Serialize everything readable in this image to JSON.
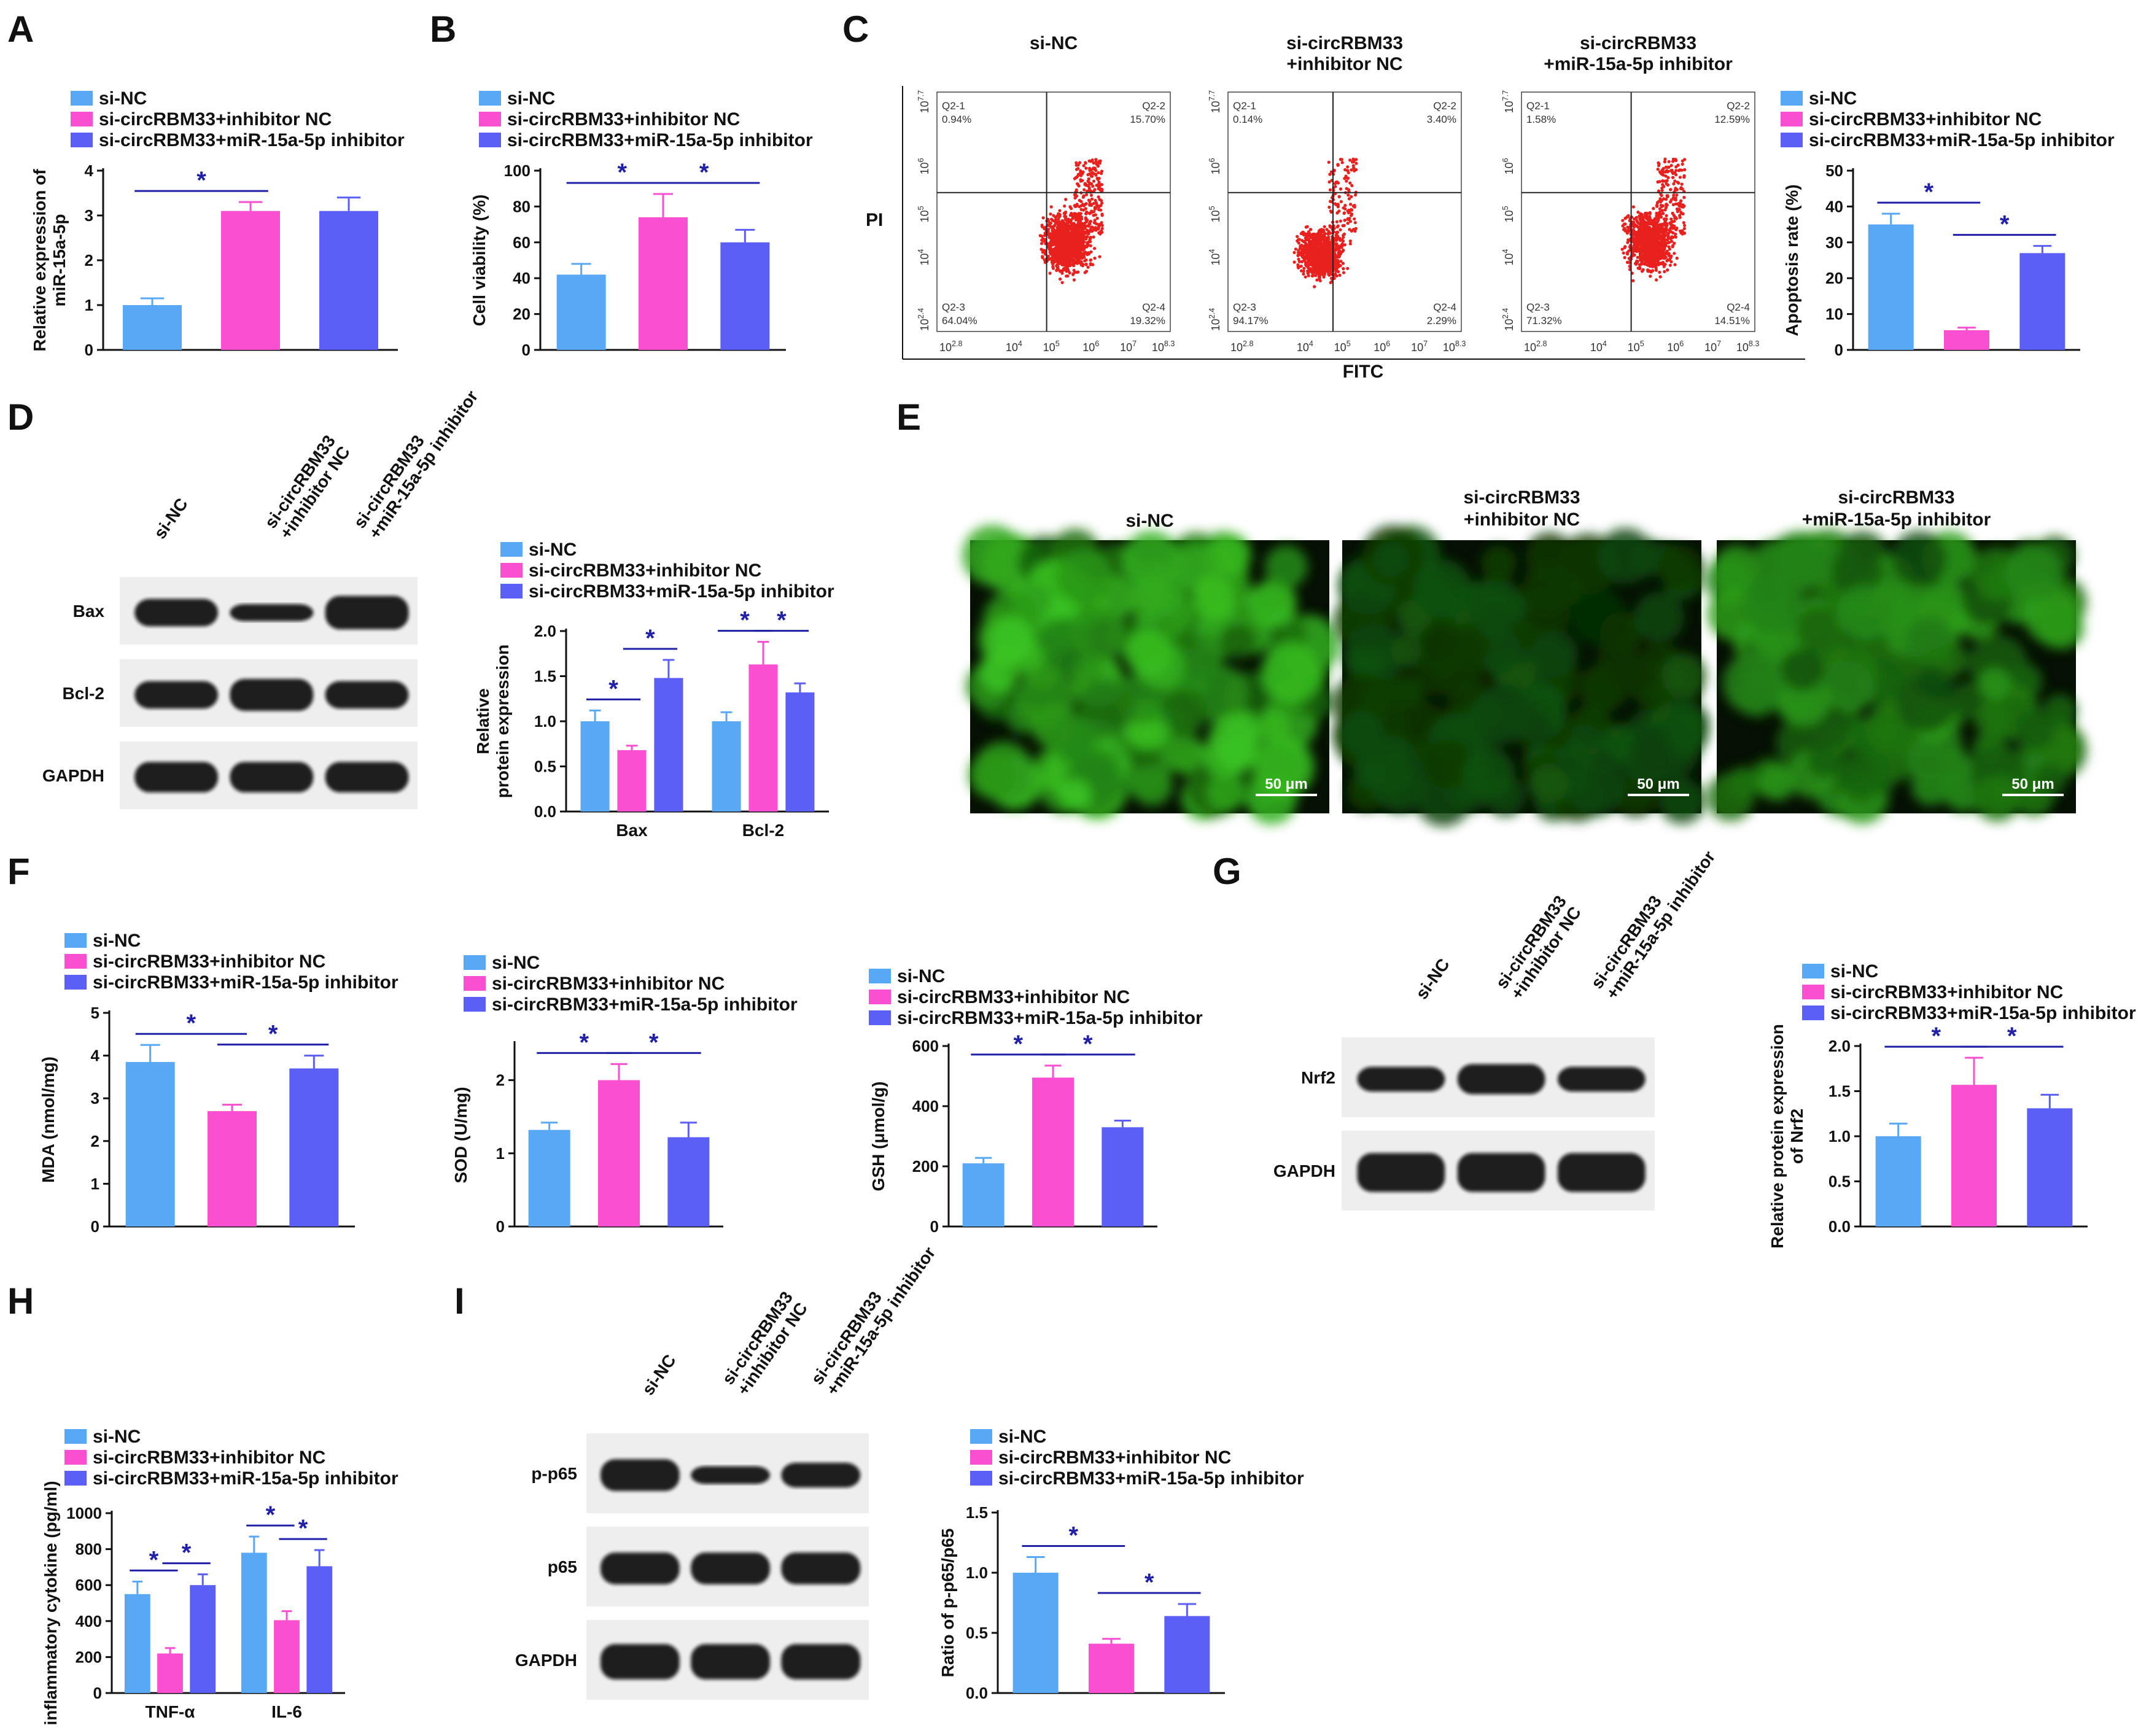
{
  "panel_letters": [
    "A",
    "B",
    "C",
    "D",
    "E",
    "F",
    "G",
    "H",
    "I"
  ],
  "legend": {
    "si_nc": "si-NC",
    "inhibitor_nc": "si-circRBM33+inhibitor NC",
    "mir_inhibitor": "si-circRBM33+miR-15a-5p inhibitor"
  },
  "colors": {
    "si_nc": "#59a8f5",
    "inhibitor_nc": "#f94fd0",
    "mir_inhibitor": "#5b5ff5",
    "significance": "#1f1fa8"
  },
  "significance_symbol": "*",
  "flow": {
    "groups": [
      "si-NC",
      "si-circRBM33\n+inhibitor NC",
      "si-circRBM33\n+miR-15a-5p inhibitor"
    ],
    "x_axis_title": "FITC",
    "y_axis_title": "PI",
    "x_ticks": [
      "10^2.8",
      "10^4",
      "10^5",
      "10^6",
      "10^7",
      "10^8.3"
    ],
    "y_ticks": [
      "10^2.4",
      "10^4",
      "10^5",
      "10^6",
      "10^7.7"
    ],
    "quadrant_names": [
      "Q2-1",
      "Q2-2",
      "Q2-3",
      "Q2-4"
    ],
    "plots": [
      {
        "q1": "0.94%",
        "q2": "15.70%",
        "q3": "64.04%",
        "q4": "19.32%"
      },
      {
        "q1": "0.14%",
        "q2": "3.40%",
        "q3": "94.17%",
        "q4": "2.29%"
      },
      {
        "q1": "1.58%",
        "q2": "12.59%",
        "q3": "71.32%",
        "q4": "14.51%"
      }
    ]
  },
  "blots": {
    "D": {
      "lanes": [
        "si-NC",
        "si-circRBM33\n+inhibitor NC",
        "si-circRBM33\n+miR-15a-5p inhibitor"
      ],
      "rows": [
        "Bax",
        "Bcl-2",
        "GAPDH"
      ]
    },
    "G": {
      "lanes": [
        "si-NC",
        "si-circRBM33\n+inhibitor NC",
        "si-circRBM33\n+miR-15a-5p inhibitor"
      ],
      "rows": [
        "Nrf2",
        "GAPDH"
      ]
    },
    "I": {
      "lanes": [
        "si-NC",
        "si-circRBM33\n+inhibitor NC",
        "si-circRBM33\n+miR-15a-5p inhibitor"
      ],
      "rows": [
        "p-p65",
        "p65",
        "GAPDH"
      ]
    }
  },
  "microscopy": {
    "titles": [
      "si-NC",
      "si-circRBM33\n+inhibitor NC",
      "si-circRBM33\n+miR-15a-5p inhibitor"
    ],
    "scale_bar": "50 μm",
    "relative_brightness": [
      0.85,
      0.3,
      0.65
    ]
  },
  "chart_data": [
    {
      "panel": "A",
      "type": "bar",
      "categories": [
        "si-NC",
        "si-circRBM33+inhibitor NC",
        "si-circRBM33+miR-15a-5p inhibitor"
      ],
      "values": [
        1.0,
        3.1,
        3.1
      ],
      "errors": [
        0.15,
        0.2,
        0.3
      ],
      "ylabel": "Relative expression of\nmiR-15a-5p",
      "ylim": [
        0,
        4
      ],
      "yticks": [
        0,
        1,
        2,
        3,
        4
      ],
      "significance": [
        [
          0,
          1
        ]
      ]
    },
    {
      "panel": "B",
      "type": "bar",
      "categories": [
        "si-NC",
        "si-circRBM33+inhibitor NC",
        "si-circRBM33+miR-15a-5p inhibitor"
      ],
      "values": [
        42,
        74,
        60
      ],
      "errors": [
        6,
        13,
        7
      ],
      "ylabel": "Cell viability (%)",
      "ylim": [
        0,
        100
      ],
      "yticks": [
        0,
        20,
        40,
        60,
        80,
        100
      ],
      "significance": [
        [
          0,
          1
        ],
        [
          1,
          2
        ]
      ]
    },
    {
      "panel": "C",
      "type": "bar",
      "categories": [
        "si-NC",
        "si-circRBM33+inhibitor NC",
        "si-circRBM33+miR-15a-5p inhibitor"
      ],
      "values": [
        35,
        5.5,
        27
      ],
      "errors": [
        3,
        0.7,
        2
      ],
      "ylabel": "Apoptosis rate (%)",
      "ylim": [
        0,
        50
      ],
      "yticks": [
        0,
        10,
        20,
        30,
        40,
        50
      ],
      "significance": [
        [
          0,
          1
        ],
        [
          1,
          2
        ]
      ]
    },
    {
      "panel": "D",
      "type": "bar",
      "categories": [
        "Bax",
        "Bcl-2"
      ],
      "series": [
        {
          "name": "si-NC",
          "values": [
            1.0,
            1.0
          ],
          "errors": [
            0.12,
            0.1
          ]
        },
        {
          "name": "si-circRBM33+inhibitor NC",
          "values": [
            0.68,
            1.63
          ],
          "errors": [
            0.05,
            0.25
          ]
        },
        {
          "name": "si-circRBM33+miR-15a-5p inhibitor",
          "values": [
            1.48,
            1.32
          ],
          "errors": [
            0.2,
            0.1
          ]
        }
      ],
      "ylabel": "Relative\nprotein expression",
      "ylim": [
        0,
        2
      ],
      "yticks": [
        "0.0",
        "0.5",
        "1.0",
        "1.5",
        "2.0"
      ],
      "significance": [
        [
          0,
          0,
          1
        ],
        [
          0,
          1,
          2
        ],
        [
          1,
          0,
          1
        ],
        [
          1,
          1,
          2
        ]
      ]
    },
    {
      "panel": "F1",
      "type": "bar",
      "categories": [
        "si-NC",
        "si-circRBM33+inhibitor NC",
        "si-circRBM33+miR-15a-5p inhibitor"
      ],
      "values": [
        3.85,
        2.7,
        3.7
      ],
      "errors": [
        0.4,
        0.15,
        0.3
      ],
      "ylabel": "MDA (nmol/mg)",
      "ylim": [
        0,
        5
      ],
      "yticks": [
        0,
        1,
        2,
        3,
        4,
        5
      ],
      "significance": [
        [
          0,
          1
        ],
        [
          1,
          2
        ]
      ]
    },
    {
      "panel": "F2",
      "type": "bar",
      "categories": [
        "si-NC",
        "si-circRBM33+inhibitor NC",
        "si-circRBM33+miR-15a-5p inhibitor"
      ],
      "values": [
        1.32,
        2.0,
        1.22
      ],
      "errors": [
        0.1,
        0.22,
        0.2
      ],
      "ylabel": "SOD (U/mg)",
      "ylim": [
        0,
        2.5
      ],
      "yticks": [
        0,
        1,
        2
      ],
      "significance": [
        [
          0,
          1
        ],
        [
          1,
          2
        ]
      ]
    },
    {
      "panel": "F3",
      "type": "bar",
      "categories": [
        "si-NC",
        "si-circRBM33+inhibitor NC",
        "si-circRBM33+miR-15a-5p inhibitor"
      ],
      "values": [
        210,
        495,
        330
      ],
      "errors": [
        18,
        40,
        22
      ],
      "ylabel": "GSH (μmol/g)",
      "ylim": [
        0,
        600
      ],
      "yticks": [
        0,
        200,
        400,
        600
      ],
      "significance": [
        [
          0,
          1
        ],
        [
          1,
          2
        ]
      ]
    },
    {
      "panel": "G",
      "type": "bar",
      "categories": [
        "si-NC",
        "si-circRBM33+inhibitor NC",
        "si-circRBM33+miR-15a-5p inhibitor"
      ],
      "values": [
        1.0,
        1.57,
        1.31
      ],
      "errors": [
        0.14,
        0.3,
        0.15
      ],
      "ylabel": "Relative protein expression\nof Nrf2",
      "ylim": [
        0,
        2
      ],
      "yticks": [
        "0.0",
        "0.5",
        "1.0",
        "1.5",
        "2.0"
      ],
      "significance": [
        [
          0,
          1
        ],
        [
          1,
          2
        ]
      ]
    },
    {
      "panel": "H",
      "type": "bar",
      "categories": [
        "TNF-α",
        "IL-6"
      ],
      "series": [
        {
          "name": "si-NC",
          "values": [
            550,
            780
          ],
          "errors": [
            70,
            90
          ]
        },
        {
          "name": "si-circRBM33+inhibitor NC",
          "values": [
            220,
            405
          ],
          "errors": [
            30,
            50
          ]
        },
        {
          "name": "si-circRBM33+miR-15a-5p inhibitor",
          "values": [
            600,
            705
          ],
          "errors": [
            60,
            90
          ]
        }
      ],
      "ylabel": "inflammatory cytokine (pg/ml)",
      "ylim": [
        0,
        1000
      ],
      "yticks": [
        0,
        200,
        400,
        600,
        800,
        1000
      ],
      "significance": [
        [
          0,
          0,
          1
        ],
        [
          0,
          1,
          2
        ],
        [
          1,
          0,
          1
        ],
        [
          1,
          1,
          2
        ]
      ]
    },
    {
      "panel": "I",
      "type": "bar",
      "categories": [
        "si-NC",
        "si-circRBM33+inhibitor NC",
        "si-circRBM33+miR-15a-5p inhibitor"
      ],
      "values": [
        1.0,
        0.41,
        0.64
      ],
      "errors": [
        0.13,
        0.04,
        0.1
      ],
      "ylabel": "Ratio of p-p65/p65",
      "ylim": [
        0,
        1.5
      ],
      "yticks": [
        "0.0",
        "0.5",
        "1.0",
        "1.5"
      ],
      "significance": [
        [
          0,
          1
        ],
        [
          1,
          2
        ]
      ]
    }
  ]
}
